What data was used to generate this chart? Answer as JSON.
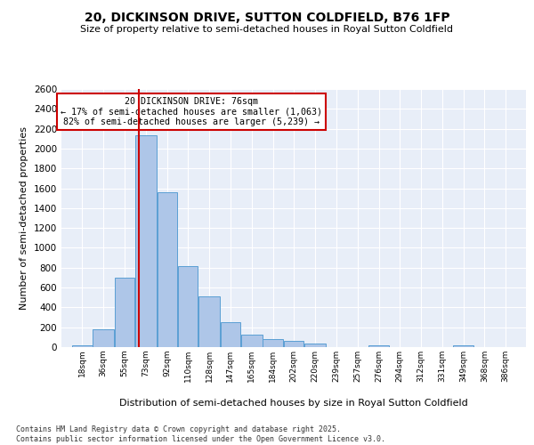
{
  "title": "20, DICKINSON DRIVE, SUTTON COLDFIELD, B76 1FP",
  "subtitle": "Size of property relative to semi-detached houses in Royal Sutton Coldfield",
  "xlabel": "Distribution of semi-detached houses by size in Royal Sutton Coldfield",
  "ylabel": "Number of semi-detached properties",
  "footer": "Contains HM Land Registry data © Crown copyright and database right 2025.\nContains public sector information licensed under the Open Government Licence v3.0.",
  "annotation_title": "20 DICKINSON DRIVE: 76sqm",
  "annotation_line1": "← 17% of semi-detached houses are smaller (1,063)",
  "annotation_line2": "82% of semi-detached houses are larger (5,239) →",
  "property_size": 76,
  "bin_labels": [
    "18sqm",
    "36sqm",
    "55sqm",
    "73sqm",
    "92sqm",
    "110sqm",
    "128sqm",
    "147sqm",
    "165sqm",
    "184sqm",
    "202sqm",
    "220sqm",
    "239sqm",
    "257sqm",
    "276sqm",
    "294sqm",
    "312sqm",
    "331sqm",
    "349sqm",
    "368sqm",
    "386sqm"
  ],
  "bin_edges": [
    18,
    36,
    55,
    73,
    92,
    110,
    128,
    147,
    165,
    184,
    202,
    220,
    239,
    257,
    276,
    294,
    312,
    331,
    349,
    368,
    386
  ],
  "values": [
    20,
    180,
    700,
    2130,
    1560,
    820,
    510,
    250,
    130,
    80,
    60,
    35,
    0,
    0,
    20,
    0,
    0,
    0,
    20,
    0,
    0
  ],
  "bar_color": "#aec6e8",
  "bar_edge_color": "#5a9fd4",
  "vline_color": "#cc0000",
  "vline_x": 76,
  "bg_color": "#e8eef8",
  "annotation_box_color": "#ffffff",
  "annotation_box_edge": "#cc0000",
  "ylim": [
    0,
    2600
  ],
  "yticks": [
    0,
    200,
    400,
    600,
    800,
    1000,
    1200,
    1400,
    1600,
    1800,
    2000,
    2200,
    2400,
    2600
  ]
}
